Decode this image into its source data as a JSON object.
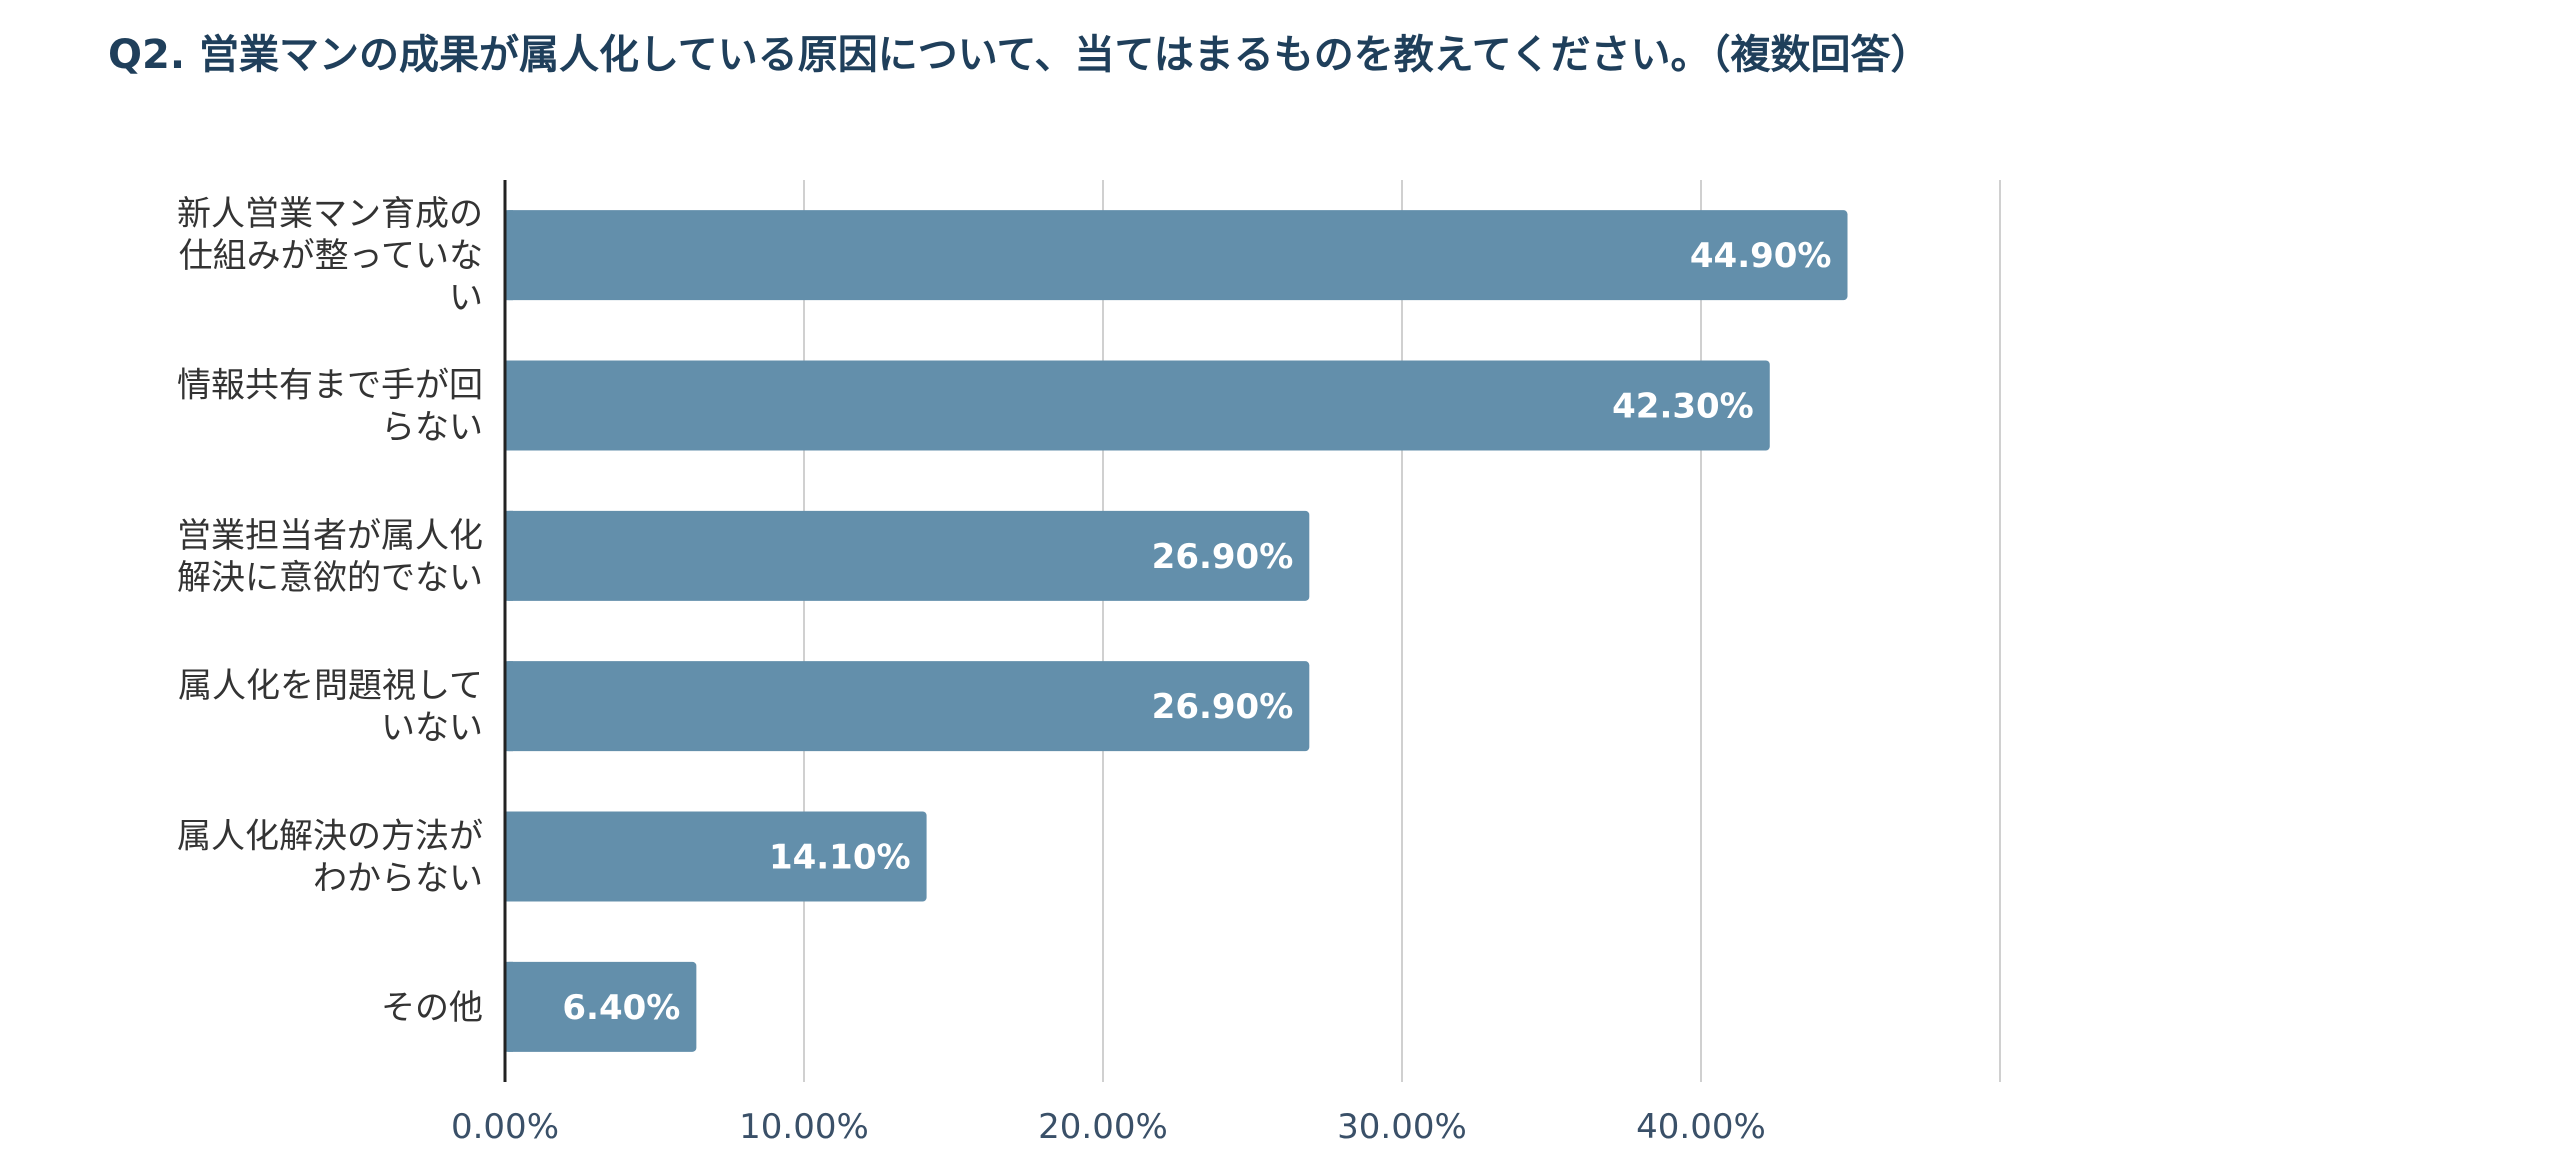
{
  "chart_data": {
    "type": "bar",
    "orientation": "horizontal",
    "title": "Q2. 営業マンの成果が属人化している原因について、当てはまるものを教えてください。（複数回答）",
    "categories": [
      [
        "新人営業マン育成の",
        "仕組みが整っていな",
        "い"
      ],
      [
        "情報共有まで手が回",
        "らない"
      ],
      [
        "営業担当者が属人化",
        "解決に意欲的でない"
      ],
      [
        "属人化を問題視して",
        "いない"
      ],
      [
        "属人化解決の方法が",
        "わからない"
      ],
      [
        "その他"
      ]
    ],
    "values": [
      44.9,
      42.3,
      26.9,
      26.9,
      14.1,
      6.4
    ],
    "value_labels": [
      "44.90%",
      "42.30%",
      "26.90%",
      "26.90%",
      "14.10%",
      "6.40%"
    ],
    "x_ticks": [
      0,
      10,
      20,
      30,
      40,
      50
    ],
    "x_tick_labels": [
      "0.00%",
      "10.00%",
      "20.00%",
      "30.00%",
      "40.00%",
      ""
    ],
    "xlim": [
      0,
      50
    ],
    "grid": true,
    "legend": "none",
    "colors": {
      "bar": "#638fab",
      "grid": "#d0d0d0",
      "axis": "#222222",
      "title": "#1f3f5b",
      "value_label": "#ffffff"
    }
  }
}
